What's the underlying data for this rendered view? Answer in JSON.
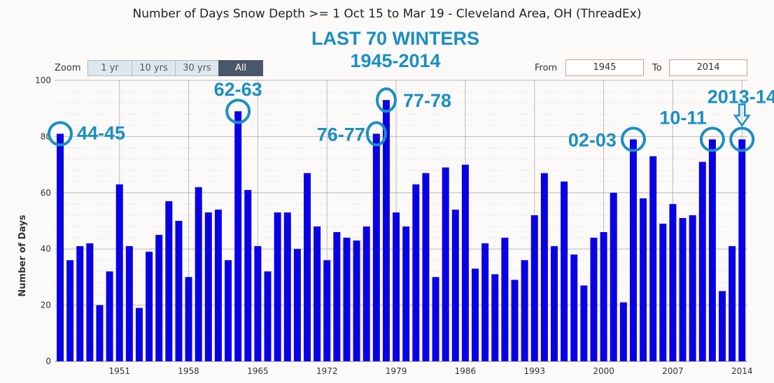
{
  "header": {
    "title": "Number of Days Snow Depth >= 1 Oct 15 to Mar 19 - Cleveland Area, OH (ThreadEx)",
    "banner_line1": "LAST 70 WINTERS",
    "banner_line2": "1945-2014"
  },
  "controls": {
    "zoom_label": "Zoom",
    "zoom_buttons": [
      "1 yr",
      "10 yrs",
      "30 yrs",
      "All"
    ],
    "active": "All",
    "from_label": "From",
    "from_value": "1945",
    "to_label": "To",
    "to_value": "2014"
  },
  "colors": {
    "bar": "#0a00e6",
    "annotation": "#1a8fc4"
  },
  "chart_data": {
    "type": "bar",
    "title": "Number of Days Snow Depth >= 1 Oct 15 to Mar 19 - Cleveland Area, OH (ThreadEx)",
    "xlabel": "",
    "ylabel": "Number of Days",
    "ylim": [
      0,
      100
    ],
    "yticks": [
      0,
      20,
      40,
      60,
      80,
      100
    ],
    "xticks": [
      1951,
      1958,
      1965,
      1972,
      1979,
      1986,
      1993,
      2000,
      2007,
      2014
    ],
    "x_start": 1945,
    "values": [
      81,
      36,
      41,
      42,
      20,
      32,
      63,
      41,
      19,
      39,
      45,
      57,
      50,
      30,
      62,
      53,
      54,
      36,
      89,
      61,
      41,
      32,
      53,
      53,
      40,
      67,
      48,
      36,
      46,
      44,
      43,
      48,
      81,
      93,
      53,
      48,
      63,
      67,
      30,
      69,
      54,
      70,
      33,
      42,
      31,
      44,
      29,
      36,
      52,
      67,
      41,
      64,
      38,
      27,
      44,
      46,
      60,
      21,
      79,
      58,
      73,
      49,
      56,
      51,
      52,
      71,
      79,
      25,
      41,
      79
    ],
    "annotations": [
      {
        "label": "44-45",
        "year": 1945
      },
      {
        "label": "62-63",
        "year": 1963
      },
      {
        "label": "76-77",
        "year": 1977
      },
      {
        "label": "77-78",
        "year": 1978
      },
      {
        "label": "02-03",
        "year": 2003
      },
      {
        "label": "10-11",
        "year": 2011
      },
      {
        "label": "2013-14",
        "year": 2014
      }
    ]
  }
}
